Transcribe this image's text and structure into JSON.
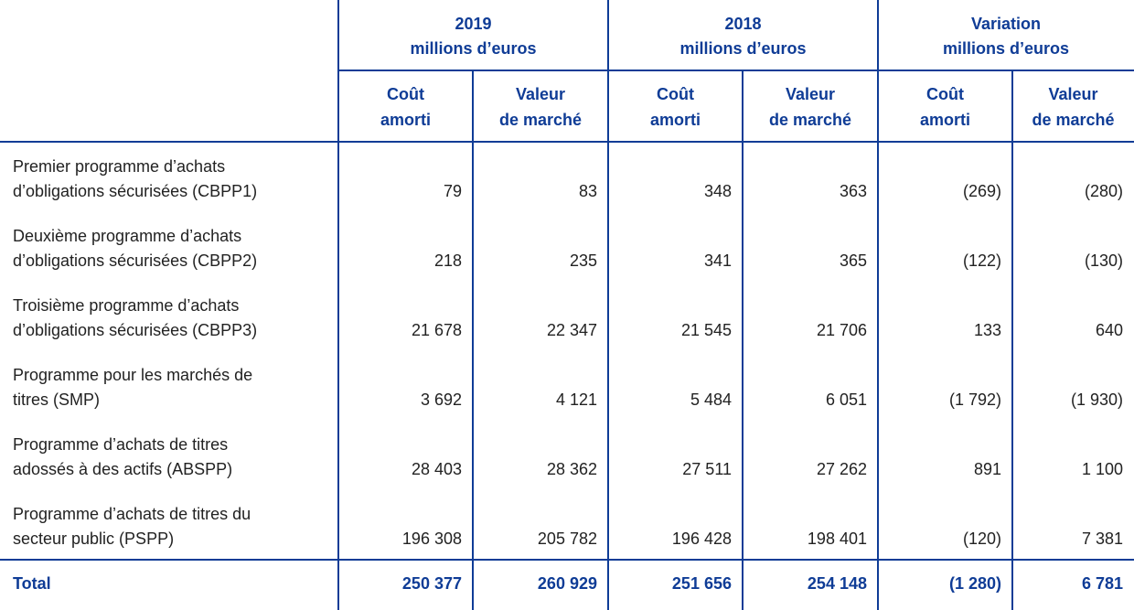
{
  "table": {
    "groups": [
      {
        "title": "2019",
        "unit": "millions d’euros",
        "sub": [
          [
            "Coût",
            "amorti"
          ],
          [
            "Valeur",
            "de marché"
          ]
        ]
      },
      {
        "title": "2018",
        "unit": "millions d’euros",
        "sub": [
          [
            "Coût",
            "amorti"
          ],
          [
            "Valeur",
            "de marché"
          ]
        ]
      },
      {
        "title": "Variation",
        "unit": "millions d’euros",
        "sub": [
          [
            "Coût",
            "amorti"
          ],
          [
            "Valeur",
            "de marché"
          ]
        ]
      }
    ],
    "rows": [
      {
        "label": [
          "Premier programme d’achats",
          "d’obligations sécurisées (CBPP1)"
        ],
        "values": [
          "79",
          "83",
          "348",
          "363",
          "(269)",
          "(280)"
        ]
      },
      {
        "label": [
          "Deuxième programme d’achats",
          "d’obligations sécurisées (CBPP2)"
        ],
        "values": [
          "218",
          "235",
          "341",
          "365",
          "(122)",
          "(130)"
        ]
      },
      {
        "label": [
          "Troisième programme d’achats",
          "d’obligations sécurisées (CBPP3)"
        ],
        "values": [
          "21 678",
          "22 347",
          "21 545",
          "21 706",
          "133",
          "640"
        ]
      },
      {
        "label": [
          "Programme pour les marchés de",
          "titres (SMP)"
        ],
        "values": [
          "3 692",
          "4 121",
          "5 484",
          "6 051",
          "(1 792)",
          "(1 930)"
        ]
      },
      {
        "label": [
          "Programme d’achats de titres",
          "adossés à des actifs (ABSPP)"
        ],
        "values": [
          "28 403",
          "28 362",
          "27 511",
          "27 262",
          "891",
          "1 100"
        ]
      },
      {
        "label": [
          "Programme d’achats de titres du",
          "secteur public (PSPP)"
        ],
        "values": [
          "196 308",
          "205 782",
          "196 428",
          "198 401",
          "(120)",
          "7 381"
        ]
      }
    ],
    "total": {
      "label": "Total",
      "values": [
        "250 377",
        "260 929",
        "251 656",
        "254 148",
        "(1 280)",
        "6 781"
      ]
    }
  }
}
